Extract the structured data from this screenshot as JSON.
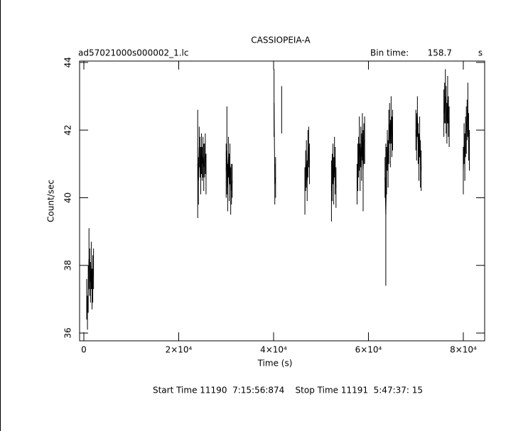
{
  "chart_data": {
    "type": "errorbar",
    "title": "CASSIOPEIA-A",
    "file_label": "ad57021000s000002_1.lc",
    "bin_time_label": "Bin time:",
    "bin_time": 158.7,
    "bin_time_unit": "s",
    "xlabel": "Time (s)",
    "ylabel": "Count/sec",
    "footer": "Start Time 11190  7:15:56:874    Stop Time 11191  5:47:37: 15",
    "color": "#000000",
    "xlim": [
      -900,
      84500
    ],
    "ylim": [
      35.77,
      44.04
    ],
    "xticks": [
      0,
      {
        "value": 20000,
        "label": "2×10⁴"
      },
      {
        "value": 40000,
        "label": "4×10⁴"
      },
      {
        "value": 60000,
        "label": "6×10⁴"
      },
      {
        "value": 80000,
        "label": "8×10⁴"
      }
    ],
    "yticks": [
      36,
      38,
      40,
      42,
      44
    ],
    "x": [
      600,
      760,
      920,
      1080,
      1240,
      1400,
      1560,
      1720,
      1880,
      2040,
      10000,
      24000,
      24160,
      24320,
      24480,
      24640,
      24800,
      24960,
      25120,
      25280,
      25440,
      25600,
      25760,
      28000,
      30000,
      30160,
      30320,
      30480,
      30640,
      30800,
      30960,
      31120,
      31280,
      36000,
      40100,
      40260,
      40420,
      41000,
      41700,
      44000,
      46600,
      46760,
      46920,
      47080,
      47240,
      47400,
      47560,
      50000,
      52200,
      52360,
      52520,
      52680,
      52840,
      53000,
      53160,
      55000,
      57600,
      57760,
      57920,
      58080,
      58240,
      58400,
      58560,
      58720,
      58880,
      59040,
      59200,
      61500,
      63500,
      63660,
      63820,
      63980,
      64140,
      64300,
      64460,
      64620,
      64780,
      64940,
      65100,
      67500,
      70000,
      70160,
      70320,
      70480,
      70640,
      70800,
      70960,
      71120,
      73500,
      75900,
      76060,
      76220,
      76380,
      76540,
      76700,
      76860,
      77020,
      78500,
      80000,
      80160,
      80320,
      80480,
      80640,
      80800,
      80960,
      81120,
      81280
    ],
    "values": [
      37.0,
      36.6,
      37.3,
      38.2,
      37.8,
      37.5,
      38.0,
      37.3,
      37.6,
      37.9,
      null,
      41.0,
      40.5,
      41.5,
      41.2,
      40.8,
      41.3,
      41.0,
      41.2,
      40.9,
      41.1,
      41.3,
      40.7,
      null,
      40.8,
      41.4,
      40.3,
      41.2,
      40.6,
      41.0,
      40.2,
      40.4,
      40.5,
      null,
      42.8,
      40.4,
      40.6,
      null,
      42.6,
      null,
      40.2,
      40.8,
      41.0,
      40.5,
      41.3,
      41.5,
      41.0,
      null,
      40.2,
      40.6,
      41.0,
      40.5,
      41.2,
      40.8,
      40.3,
      null,
      40.4,
      40.9,
      41.2,
      41.6,
      40.9,
      41.5,
      41.2,
      41.8,
      40.8,
      41.6,
      41.7,
      null,
      40.6,
      39.5,
      40.8,
      41.4,
      41.0,
      41.8,
      42.2,
      41.6,
      42.3,
      41.8,
      42.0,
      null,
      42.0,
      41.8,
      42.4,
      41.6,
      41.2,
      41.8,
      41.0,
      40.8,
      null,
      42.5,
      42.8,
      43.0,
      42.6,
      42.2,
      42.9,
      42.4,
      42.1,
      null,
      40.8,
      41.6,
      41.2,
      41.8,
      42.0,
      42.3,
      42.6,
      41.8,
      41.4
    ],
    "errors": [
      0.6,
      0.5,
      0.7,
      0.9,
      0.7,
      0.6,
      0.7,
      0.6,
      0.7,
      0.6,
      null,
      1.6,
      0.7,
      0.6,
      0.6,
      0.7,
      0.6,
      0.5,
      0.6,
      0.7,
      0.5,
      0.6,
      0.6,
      null,
      0.8,
      1.3,
      0.7,
      0.6,
      0.7,
      0.6,
      0.7,
      0.6,
      0.5,
      null,
      1.0,
      0.6,
      0.6,
      null,
      0.7,
      null,
      0.7,
      0.6,
      0.7,
      0.6,
      0.7,
      0.6,
      0.6,
      null,
      0.9,
      0.7,
      0.6,
      0.7,
      0.6,
      0.7,
      0.6,
      null,
      0.6,
      0.7,
      0.6,
      0.8,
      0.7,
      0.6,
      0.7,
      0.7,
      1.2,
      0.6,
      0.7,
      null,
      0.6,
      2.1,
      0.7,
      0.6,
      0.7,
      0.8,
      0.6,
      0.7,
      0.7,
      0.6,
      0.6,
      null,
      0.6,
      0.7,
      0.6,
      0.6,
      0.7,
      0.6,
      0.7,
      0.6,
      null,
      0.7,
      0.6,
      0.8,
      0.7,
      0.6,
      0.7,
      0.6,
      0.6,
      null,
      0.7,
      0.6,
      0.7,
      0.6,
      0.7,
      0.6,
      0.8,
      0.7,
      0.6
    ]
  }
}
